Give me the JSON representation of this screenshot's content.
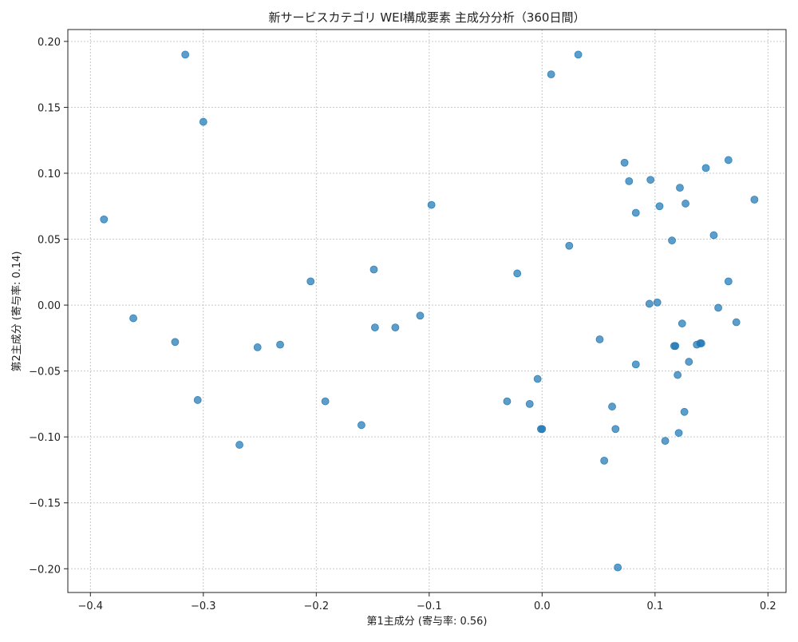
{
  "chart_data": {
    "type": "scatter",
    "title": "新サービスカテゴリ WEI構成要素 主成分分析（360日間）",
    "xlabel": "第1主成分 (寄与率: 0.56)",
    "ylabel": "第2主成分 (寄与率: 0.14)",
    "xlim": [
      -0.42,
      0.216
    ],
    "ylim": [
      -0.218,
      0.209
    ],
    "xticks": [
      -0.4,
      -0.3,
      -0.2,
      -0.1,
      0.0,
      0.1,
      0.2
    ],
    "xtick_labels": [
      "−0.4",
      "−0.3",
      "−0.2",
      "−0.1",
      "0.0",
      "0.1",
      "0.2"
    ],
    "yticks": [
      -0.2,
      -0.15,
      -0.1,
      -0.05,
      0.0,
      0.05,
      0.1,
      0.15,
      0.2
    ],
    "ytick_labels": [
      "−0.20",
      "−0.15",
      "−0.10",
      "−0.05",
      "0.00",
      "0.05",
      "0.10",
      "0.15",
      "0.20"
    ],
    "grid": true,
    "point_color": "#1f77b4",
    "points": [
      {
        "x": -0.316,
        "y": 0.19
      },
      {
        "x": -0.3,
        "y": 0.139
      },
      {
        "x": -0.388,
        "y": 0.065
      },
      {
        "x": -0.362,
        "y": -0.01
      },
      {
        "x": -0.325,
        "y": -0.028
      },
      {
        "x": -0.305,
        "y": -0.072
      },
      {
        "x": -0.268,
        "y": -0.106
      },
      {
        "x": -0.252,
        "y": -0.032
      },
      {
        "x": -0.232,
        "y": -0.03
      },
      {
        "x": -0.205,
        "y": 0.018
      },
      {
        "x": -0.192,
        "y": -0.073
      },
      {
        "x": -0.16,
        "y": -0.091
      },
      {
        "x": -0.149,
        "y": 0.027
      },
      {
        "x": -0.148,
        "y": -0.017
      },
      {
        "x": -0.13,
        "y": -0.017
      },
      {
        "x": -0.108,
        "y": -0.008
      },
      {
        "x": -0.098,
        "y": 0.076
      },
      {
        "x": -0.031,
        "y": -0.073
      },
      {
        "x": -0.022,
        "y": 0.024
      },
      {
        "x": -0.011,
        "y": -0.075
      },
      {
        "x": -0.004,
        "y": -0.056
      },
      {
        "x": -0.001,
        "y": -0.094
      },
      {
        "x": 0.0,
        "y": -0.094
      },
      {
        "x": 0.008,
        "y": 0.175
      },
      {
        "x": 0.024,
        "y": 0.045
      },
      {
        "x": 0.032,
        "y": 0.19
      },
      {
        "x": 0.051,
        "y": -0.026
      },
      {
        "x": 0.055,
        "y": -0.118
      },
      {
        "x": 0.062,
        "y": -0.077
      },
      {
        "x": 0.065,
        "y": -0.094
      },
      {
        "x": 0.067,
        "y": -0.199
      },
      {
        "x": 0.073,
        "y": 0.108
      },
      {
        "x": 0.077,
        "y": 0.094
      },
      {
        "x": 0.083,
        "y": -0.045
      },
      {
        "x": 0.083,
        "y": 0.07
      },
      {
        "x": 0.095,
        "y": 0.001
      },
      {
        "x": 0.096,
        "y": 0.095
      },
      {
        "x": 0.102,
        "y": 0.002
      },
      {
        "x": 0.104,
        "y": 0.075
      },
      {
        "x": 0.109,
        "y": -0.103
      },
      {
        "x": 0.115,
        "y": 0.049
      },
      {
        "x": 0.117,
        "y": -0.031
      },
      {
        "x": 0.118,
        "y": -0.031
      },
      {
        "x": 0.12,
        "y": -0.053
      },
      {
        "x": 0.121,
        "y": -0.097
      },
      {
        "x": 0.122,
        "y": 0.089
      },
      {
        "x": 0.124,
        "y": -0.014
      },
      {
        "x": 0.126,
        "y": -0.081
      },
      {
        "x": 0.127,
        "y": 0.077
      },
      {
        "x": 0.13,
        "y": -0.043
      },
      {
        "x": 0.137,
        "y": -0.03
      },
      {
        "x": 0.14,
        "y": -0.029
      },
      {
        "x": 0.141,
        "y": -0.029
      },
      {
        "x": 0.145,
        "y": 0.104
      },
      {
        "x": 0.152,
        "y": 0.053
      },
      {
        "x": 0.156,
        "y": -0.002
      },
      {
        "x": 0.165,
        "y": 0.018
      },
      {
        "x": 0.165,
        "y": 0.11
      },
      {
        "x": 0.172,
        "y": -0.013
      },
      {
        "x": 0.188,
        "y": 0.08
      }
    ]
  }
}
